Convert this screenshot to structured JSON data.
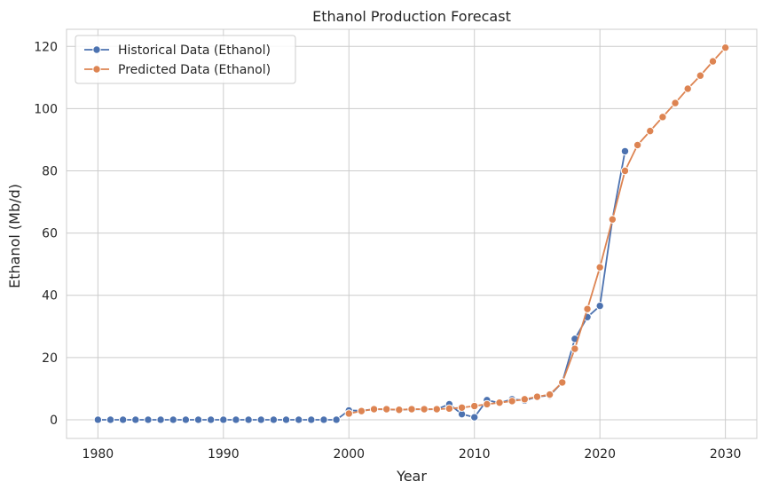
{
  "chart_data": {
    "type": "line",
    "title": "Ethanol Production Forecast",
    "xlabel": "Year",
    "ylabel": "Ethanol (Mb/d)",
    "xlim": [
      1977.5,
      2032.5
    ],
    "ylim": [
      -6,
      125.5
    ],
    "xticks": [
      1980,
      1990,
      2000,
      2010,
      2020,
      2030
    ],
    "yticks": [
      0,
      20,
      40,
      60,
      80,
      100,
      120
    ],
    "grid": true,
    "legend_position": "top-left",
    "series": [
      {
        "name": "Historical Data (Ethanol)",
        "color": "#4c72b0",
        "x": [
          1980,
          1981,
          1982,
          1983,
          1984,
          1985,
          1986,
          1987,
          1988,
          1989,
          1990,
          1991,
          1992,
          1993,
          1994,
          1995,
          1996,
          1997,
          1998,
          1999,
          2000,
          2001,
          2002,
          2003,
          2004,
          2005,
          2006,
          2007,
          2008,
          2009,
          2010,
          2011,
          2012,
          2013,
          2014,
          2015,
          2016,
          2017,
          2018,
          2019,
          2020,
          2021,
          2022
        ],
        "y": [
          0,
          0,
          0,
          0,
          0,
          0,
          0,
          0,
          0,
          0,
          0,
          0,
          0,
          0,
          0,
          0,
          0,
          0,
          0,
          0,
          3.0,
          2.9,
          3.4,
          3.3,
          3.2,
          3.4,
          3.3,
          3.4,
          5.0,
          1.8,
          0.8,
          6.3,
          5.4,
          6.6,
          6.2,
          7.4,
          7.8,
          12.0,
          26.0,
          33.0,
          36.6,
          64.5,
          86.3
        ]
      },
      {
        "name": "Predicted Data (Ethanol)",
        "color": "#dd8452",
        "x": [
          2000,
          2001,
          2002,
          2003,
          2004,
          2005,
          2006,
          2007,
          2008,
          2009,
          2010,
          2011,
          2012,
          2013,
          2014,
          2015,
          2016,
          2017,
          2018,
          2019,
          2020,
          2021,
          2022,
          2023,
          2024,
          2025,
          2026,
          2027,
          2028,
          2029,
          2030
        ],
        "y": [
          2.0,
          2.8,
          3.4,
          3.4,
          3.2,
          3.4,
          3.4,
          3.4,
          3.6,
          3.9,
          4.4,
          5.0,
          5.5,
          6.0,
          6.6,
          7.4,
          8.1,
          12.0,
          22.8,
          35.6,
          49.0,
          64.4,
          80.0,
          88.3,
          92.8,
          97.3,
          101.8,
          106.4,
          110.6,
          115.2,
          119.6
        ]
      }
    ]
  }
}
